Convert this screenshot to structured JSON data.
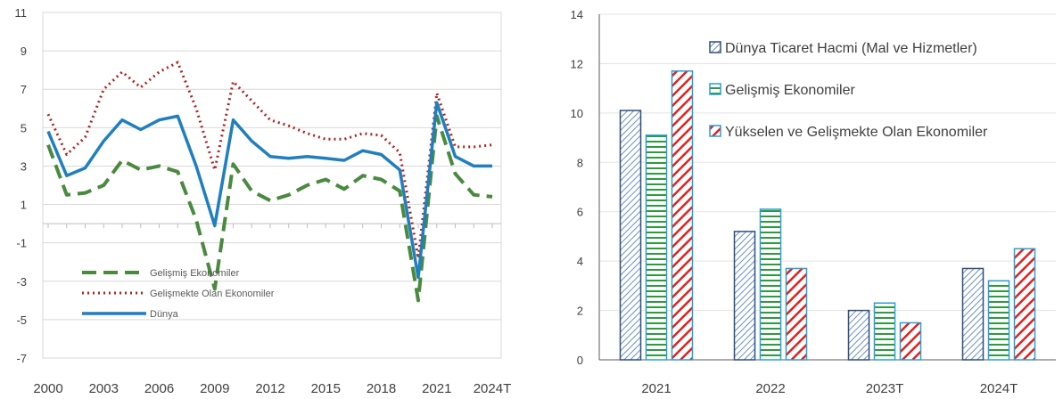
{
  "chart_data": [
    {
      "type": "line",
      "title": "",
      "xlabel": "",
      "ylabel": "",
      "ylim": [
        -7,
        11
      ],
      "yticks": [
        -7,
        -5,
        -3,
        -1,
        1,
        3,
        5,
        7,
        9,
        11
      ],
      "xtick_labels": [
        "2000",
        "2003",
        "2006",
        "2009",
        "2012",
        "2015",
        "2018",
        "2021",
        "2024T"
      ],
      "x": [
        "2000",
        "2001",
        "2002",
        "2003",
        "2004",
        "2005",
        "2006",
        "2007",
        "2008",
        "2009",
        "2010",
        "2011",
        "2012",
        "2013",
        "2014",
        "2015",
        "2016",
        "2017",
        "2018",
        "2019",
        "2020",
        "2021",
        "2022",
        "2023T",
        "2024T"
      ],
      "grid": true,
      "legend": "lower-left",
      "series": [
        {
          "name": "Gelişmiş Ekonomiler",
          "style": "dashed",
          "color": "#4a8a3f",
          "values": [
            4.1,
            1.5,
            1.6,
            2.0,
            3.3,
            2.8,
            3.0,
            2.7,
            0.2,
            -3.4,
            3.1,
            1.7,
            1.2,
            1.5,
            2.0,
            2.3,
            1.8,
            2.5,
            2.3,
            1.7,
            -4.0,
            5.6,
            2.6,
            1.5,
            1.4
          ]
        },
        {
          "name": "Gelişmekte Olan Ekonomiler",
          "style": "dotted",
          "color": "#b22222",
          "values": [
            5.7,
            3.6,
            4.5,
            7.0,
            7.9,
            7.1,
            7.9,
            8.4,
            6.0,
            2.8,
            7.4,
            6.4,
            5.4,
            5.1,
            4.7,
            4.4,
            4.4,
            4.7,
            4.6,
            3.7,
            -1.8,
            6.8,
            4.0,
            4.0,
            4.1
          ]
        },
        {
          "name": "Dünya",
          "style": "solid",
          "color": "#1f7fbf",
          "values": [
            4.8,
            2.5,
            2.9,
            4.3,
            5.4,
            4.9,
            5.4,
            5.6,
            3.0,
            -0.1,
            5.4,
            4.3,
            3.5,
            3.4,
            3.5,
            3.4,
            3.3,
            3.8,
            3.6,
            2.8,
            -2.8,
            6.3,
            3.5,
            3.0,
            3.0
          ]
        }
      ]
    },
    {
      "type": "bar",
      "title": "",
      "xlabel": "",
      "ylabel": "",
      "ylim": [
        0,
        14
      ],
      "yticks": [
        0,
        2,
        4,
        6,
        8,
        10,
        12,
        14
      ],
      "categories": [
        "2021",
        "2022",
        "2023T",
        "2024T"
      ],
      "grid": true,
      "legend": "top-right",
      "series": [
        {
          "name": "Dünya Ticaret Hacmi (Mal ve Hizmetler)",
          "pattern": "diagonal",
          "color": "#4a6fa5",
          "values": [
            10.1,
            5.2,
            2.0,
            3.7
          ]
        },
        {
          "name": "Gelişmiş Ekonomiler",
          "pattern": "horizontal",
          "color": "#2a9d3a",
          "values": [
            9.1,
            6.1,
            2.3,
            3.2
          ]
        },
        {
          "name": "Yükselen ve Gelişmekte Olan Ekonomiler",
          "pattern": "thick-diagonal",
          "color": "#e02020",
          "values": [
            11.7,
            3.7,
            1.5,
            4.5
          ]
        }
      ]
    }
  ]
}
